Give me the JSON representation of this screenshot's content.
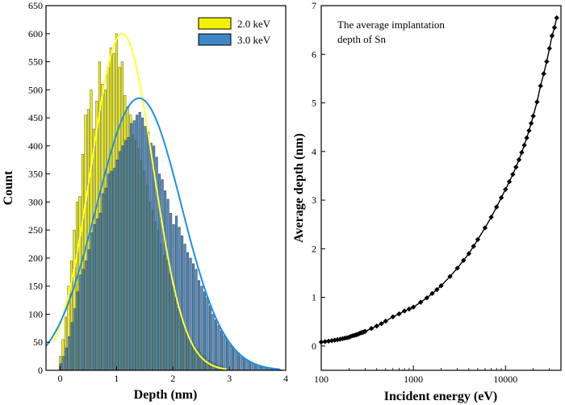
{
  "chart_data": [
    {
      "type": "bar",
      "xlabel": "Depth (nm)",
      "ylabel": "Count",
      "xlim": [
        -0.25,
        4.0
      ],
      "ylim": [
        0,
        650
      ],
      "xticks": [
        "0",
        "1",
        "2",
        "3",
        "4"
      ],
      "xtick_values": [
        0,
        1,
        2,
        3,
        4
      ],
      "yticks": [
        "0",
        "50",
        "100",
        "150",
        "200",
        "250",
        "300",
        "350",
        "400",
        "450",
        "500",
        "550",
        "600",
        "650"
      ],
      "ytick_values": [
        0,
        50,
        100,
        150,
        200,
        250,
        300,
        350,
        400,
        450,
        500,
        550,
        600,
        650
      ],
      "legend_position": "top-right",
      "grid": false,
      "series": [
        {
          "name": "2.0 keV",
          "bar_color": "#f2f200",
          "fit_color": "#ffff33",
          "x": [
            0.0,
            0.05,
            0.1,
            0.15,
            0.2,
            0.25,
            0.3,
            0.35,
            0.4,
            0.45,
            0.5,
            0.55,
            0.6,
            0.65,
            0.7,
            0.75,
            0.8,
            0.85,
            0.9,
            0.95,
            1.0,
            1.05,
            1.1,
            1.15,
            1.2,
            1.25,
            1.3,
            1.35,
            1.4,
            1.45,
            1.5,
            1.55,
            1.6,
            1.65,
            1.7,
            1.75,
            1.8,
            1.85,
            1.9,
            1.95,
            2.0,
            2.05,
            2.1,
            2.15,
            2.2,
            2.25,
            2.3,
            2.35,
            2.4,
            2.45,
            2.5,
            2.55,
            2.6,
            2.65,
            2.7,
            2.75,
            2.8,
            2.85,
            2.9
          ],
          "values": [
            25,
            55,
            95,
            150,
            195,
            250,
            300,
            310,
            385,
            455,
            465,
            500,
            430,
            480,
            550,
            510,
            500,
            540,
            575,
            565,
            600,
            540,
            550,
            490,
            470,
            455,
            420,
            410,
            395,
            375,
            355,
            330,
            300,
            285,
            265,
            250,
            225,
            205,
            195,
            170,
            150,
            130,
            110,
            95,
            80,
            70,
            60,
            52,
            45,
            38,
            32,
            27,
            22,
            18,
            15,
            12,
            10,
            8,
            6
          ],
          "fit_peak_x": 1.1,
          "fit_peak_y": 600,
          "fit_sigma": 0.55
        },
        {
          "name": "3.0 keV",
          "bar_color": "#3e86c8",
          "fit_color": "#1e90e6",
          "x": [
            0.0,
            0.05,
            0.1,
            0.15,
            0.2,
            0.25,
            0.3,
            0.35,
            0.4,
            0.45,
            0.5,
            0.55,
            0.6,
            0.65,
            0.7,
            0.75,
            0.8,
            0.85,
            0.9,
            0.95,
            1.0,
            1.05,
            1.1,
            1.15,
            1.2,
            1.25,
            1.3,
            1.35,
            1.4,
            1.45,
            1.5,
            1.55,
            1.6,
            1.65,
            1.7,
            1.75,
            1.8,
            1.85,
            1.9,
            1.95,
            2.0,
            2.05,
            2.1,
            2.15,
            2.2,
            2.25,
            2.3,
            2.35,
            2.4,
            2.45,
            2.5,
            2.55,
            2.6,
            2.65,
            2.7,
            2.75,
            2.8,
            2.85,
            2.9,
            2.95,
            3.0,
            3.05,
            3.1,
            3.15,
            3.2,
            3.25,
            3.3,
            3.35,
            3.4,
            3.45,
            3.5,
            3.55,
            3.6,
            3.65,
            3.7,
            3.75,
            3.8,
            3.85,
            3.9
          ],
          "values": [
            12,
            25,
            40,
            60,
            85,
            110,
            140,
            170,
            180,
            195,
            215,
            245,
            260,
            270,
            280,
            315,
            325,
            350,
            355,
            360,
            375,
            390,
            400,
            410,
            415,
            440,
            445,
            455,
            460,
            450,
            435,
            425,
            405,
            400,
            380,
            350,
            340,
            320,
            305,
            280,
            260,
            275,
            255,
            240,
            225,
            210,
            200,
            190,
            180,
            160,
            150,
            140,
            130,
            115,
            100,
            90,
            80,
            70,
            62,
            55,
            48,
            42,
            36,
            31,
            26,
            22,
            18,
            15,
            12,
            10,
            8,
            6,
            5,
            4,
            3,
            2,
            2,
            1,
            1
          ],
          "fit_peak_x": 1.4,
          "fit_peak_y": 485,
          "fit_sigma": 0.75
        }
      ]
    },
    {
      "type": "line",
      "xlabel": "Incident energy (eV)",
      "ylabel": "Average depth (nm)",
      "annotation_line1": "The average implantation",
      "annotation_line2": "depth of Sn",
      "x_scale": "log",
      "xlim": [
        100,
        40000
      ],
      "ylim": [
        -0.5,
        7
      ],
      "xticks": [
        "100",
        "1000",
        "10000"
      ],
      "xtick_values": [
        100,
        1000,
        10000
      ],
      "yticks": [
        "0",
        "1",
        "2",
        "3",
        "4",
        "5",
        "6",
        "7"
      ],
      "ytick_values": [
        0,
        1,
        2,
        3,
        4,
        5,
        6,
        7
      ],
      "grid": false,
      "marker": "diamond",
      "line_color": "#000000",
      "x": [
        100,
        110,
        120,
        130,
        140,
        150,
        160,
        170,
        180,
        190,
        200,
        210,
        220,
        230,
        240,
        250,
        260,
        270,
        280,
        290,
        300,
        350,
        400,
        450,
        500,
        600,
        700,
        800,
        900,
        1000,
        1200,
        1400,
        1600,
        1800,
        2000,
        2500,
        3000,
        3500,
        4000,
        4500,
        5000,
        6000,
        7000,
        8000,
        9000,
        10000,
        11000,
        12000,
        13000,
        14000,
        15000,
        16000,
        17000,
        18000,
        19000,
        20000,
        22000,
        24000,
        26000,
        28000,
        30000,
        32000,
        34000,
        36000
      ],
      "y": [
        0.08,
        0.09,
        0.1,
        0.11,
        0.12,
        0.13,
        0.14,
        0.15,
        0.16,
        0.17,
        0.18,
        0.2,
        0.21,
        0.22,
        0.23,
        0.24,
        0.26,
        0.27,
        0.28,
        0.29,
        0.3,
        0.36,
        0.41,
        0.46,
        0.51,
        0.6,
        0.66,
        0.72,
        0.76,
        0.8,
        0.9,
        0.99,
        1.08,
        1.16,
        1.24,
        1.43,
        1.6,
        1.76,
        1.9,
        2.05,
        2.19,
        2.43,
        2.65,
        2.86,
        3.05,
        3.22,
        3.38,
        3.53,
        3.68,
        3.83,
        3.98,
        4.13,
        4.28,
        4.43,
        4.58,
        4.73,
        5.02,
        5.35,
        5.6,
        5.85,
        6.12,
        6.38,
        6.55,
        6.75
      ]
    }
  ]
}
